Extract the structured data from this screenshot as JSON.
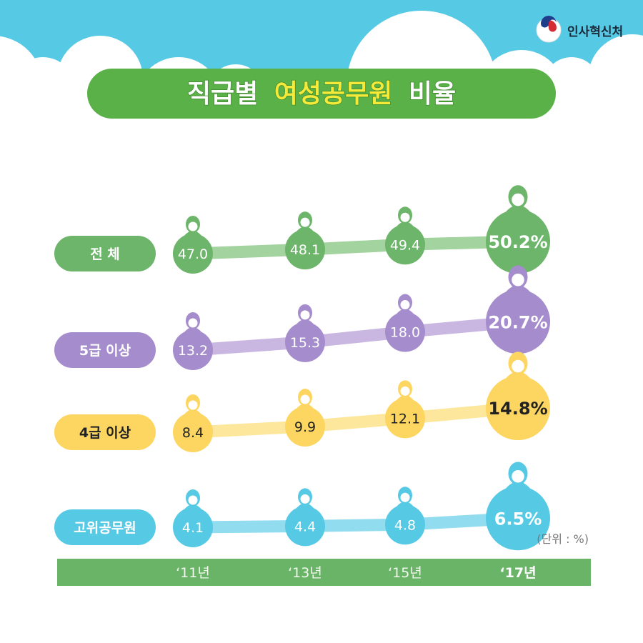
{
  "header": {
    "title_part1": "직급별",
    "title_highlight": "여성공무원",
    "title_part2": "비율",
    "org_name": "인사혁신처",
    "org_logo_icon": "taegeuk-logo-icon"
  },
  "colors": {
    "sky": "#56c9e5",
    "cloud": "#ffffff",
    "title_bg": "#5ab147",
    "title_text": "#ffffff",
    "title_highlight": "#f5ea3a",
    "axis_bar": "#6ab467"
  },
  "chart_data": {
    "type": "line",
    "title": "직급별 여성공무원 비율",
    "unit_note": "(단위 : %)",
    "categories": [
      "‘11년",
      "‘13년",
      "‘15년",
      "‘17년"
    ],
    "ylabel": "",
    "series": [
      {
        "name": "전 체",
        "values": [
          47.0,
          48.1,
          49.4,
          50.2
        ],
        "value_labels": [
          "47.0",
          "48.1",
          "49.4",
          "50.2%"
        ],
        "color": "#6db56a",
        "line_color": "#a3d39e",
        "text_color": "#ffffff"
      },
      {
        "name": "5급 이상",
        "values": [
          13.2,
          15.3,
          18.0,
          20.7
        ],
        "value_labels": [
          "13.2",
          "15.3",
          "18.0",
          "20.7%"
        ],
        "color": "#a58ccc",
        "line_color": "#c9b7e2",
        "text_color": "#ffffff"
      },
      {
        "name": "4급 이상",
        "values": [
          8.4,
          9.9,
          12.1,
          14.8
        ],
        "value_labels": [
          "8.4",
          "9.9",
          "12.1",
          "14.8%"
        ],
        "color": "#fdd561",
        "line_color": "#fde79c",
        "text_color": "#222222"
      },
      {
        "name": "고위공무원",
        "values": [
          4.1,
          4.4,
          4.8,
          6.5
        ],
        "value_labels": [
          "4.1",
          "4.4",
          "4.8",
          "6.5%"
        ],
        "color": "#56c9e5",
        "line_color": "#92dcef",
        "text_color": "#ffffff"
      }
    ]
  }
}
